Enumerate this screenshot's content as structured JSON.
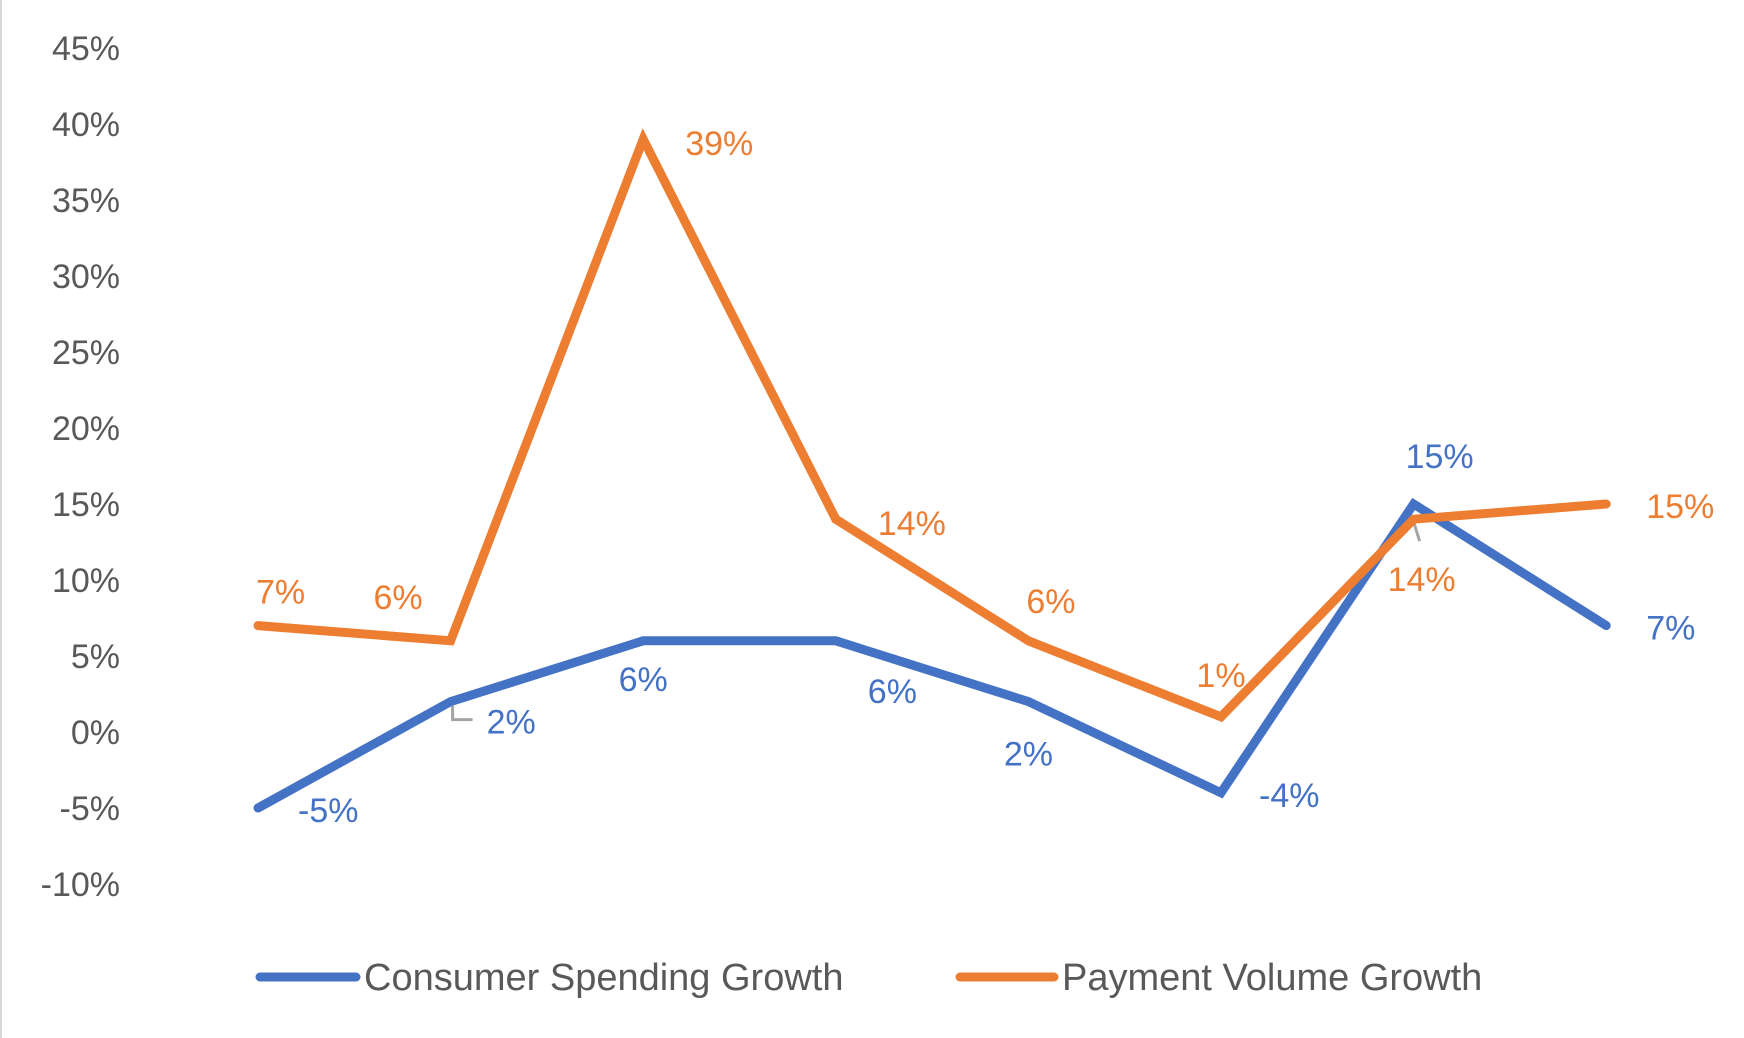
{
  "chart_data": {
    "type": "line",
    "title": "",
    "xlabel": "",
    "ylabel": "",
    "ylim": [
      -10,
      45
    ],
    "y_ticks": [
      "45%",
      "40%",
      "35%",
      "30%",
      "25%",
      "20%",
      "15%",
      "10%",
      "5%",
      "0%",
      "-5%",
      "-10%"
    ],
    "y_tick_values": [
      45,
      40,
      35,
      30,
      25,
      20,
      15,
      10,
      5,
      0,
      -5,
      -10
    ],
    "categories_count": 8,
    "grid": false,
    "legend_position": "bottom",
    "series": [
      {
        "name": "Consumer Spending Growth",
        "color": "#4472C4",
        "values": [
          -5,
          2,
          6,
          6,
          2,
          -4,
          15,
          7
        ],
        "labels": [
          "-5%",
          "2%",
          "6%",
          "6%",
          "2%",
          "-4%",
          "15%",
          "7%"
        ]
      },
      {
        "name": "Payment Volume Growth",
        "color": "#ED7D31",
        "values": [
          7,
          6,
          39,
          14,
          6,
          1,
          14,
          15
        ],
        "labels": [
          "7%",
          "6%",
          "39%",
          "14%",
          "6%",
          "1%",
          "14%",
          "15%"
        ]
      }
    ]
  }
}
